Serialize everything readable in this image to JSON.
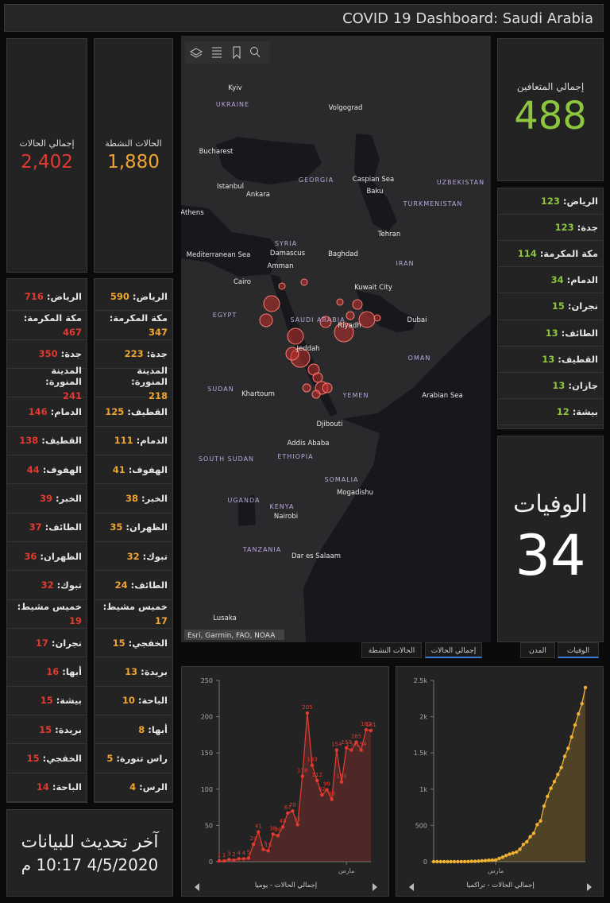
{
  "header": {
    "title": "COVID 19 Dashboard: Saudi Arabia"
  },
  "panels": {
    "total_cases": {
      "label": "إجمالي الحالات",
      "value": "2,402"
    },
    "active_cases": {
      "label": "الحالات النشطة",
      "value": "1,880"
    },
    "recovered": {
      "label": "إجمالي المتعافين",
      "value": "488"
    },
    "deaths": {
      "label": "الوفيات",
      "value": "34"
    }
  },
  "lists": {
    "total_cases": [
      {
        "name": "الرياض:",
        "value": 716
      },
      {
        "name": "مكة المكرمة:",
        "value": 467
      },
      {
        "name": "جدة:",
        "value": 350
      },
      {
        "name": "المدينة المنورة:",
        "value": 241
      },
      {
        "name": "الدمام:",
        "value": 146
      },
      {
        "name": "القطيف:",
        "value": 138
      },
      {
        "name": "الهفوف:",
        "value": 44
      },
      {
        "name": "الخبر:",
        "value": 39
      },
      {
        "name": "الطائف:",
        "value": 37
      },
      {
        "name": "الظهران:",
        "value": 36
      },
      {
        "name": "تبوك:",
        "value": 32
      },
      {
        "name": "خميس مشيط:",
        "value": 19
      },
      {
        "name": "نجران:",
        "value": 17
      },
      {
        "name": "أبها:",
        "value": 16
      },
      {
        "name": "بيشة:",
        "value": 15
      },
      {
        "name": "بريدة:",
        "value": 15
      },
      {
        "name": "الخفجي:",
        "value": 15
      },
      {
        "name": "الباحة:",
        "value": 14
      }
    ],
    "active_cases": [
      {
        "name": "الرياض:",
        "value": 590
      },
      {
        "name": "مكة المكرمة:",
        "value": 347
      },
      {
        "name": "جدة:",
        "value": 223
      },
      {
        "name": "المدينة المنورة:",
        "value": 218
      },
      {
        "name": "القطيف:",
        "value": 125
      },
      {
        "name": "الدمام:",
        "value": 111
      },
      {
        "name": "الهفوف:",
        "value": 41
      },
      {
        "name": "الخبر:",
        "value": 38
      },
      {
        "name": "الظهران:",
        "value": 35
      },
      {
        "name": "تبوك:",
        "value": 32
      },
      {
        "name": "الطائف:",
        "value": 24
      },
      {
        "name": "خميس مشيط:",
        "value": 17
      },
      {
        "name": "الخفجي:",
        "value": 15
      },
      {
        "name": "بريدة:",
        "value": 13
      },
      {
        "name": "الباحة:",
        "value": 10
      },
      {
        "name": "أبها:",
        "value": 8
      },
      {
        "name": "راس تنورة:",
        "value": 5
      },
      {
        "name": "الرس:",
        "value": 4
      }
    ],
    "recovered": [
      {
        "name": "الرياض:",
        "value": 123
      },
      {
        "name": "جدة:",
        "value": 123
      },
      {
        "name": "مكة المكرمة:",
        "value": 114
      },
      {
        "name": "الدمام:",
        "value": 34
      },
      {
        "name": "نجران:",
        "value": 15
      },
      {
        "name": "الطائف:",
        "value": 13
      },
      {
        "name": "القطيف:",
        "value": 13
      },
      {
        "name": "جازان:",
        "value": 13
      },
      {
        "name": "بيشة:",
        "value": 12
      }
    ]
  },
  "last_update": {
    "label": "آخر تحديث للبيانات",
    "value": "4/5/2020 10:17 م"
  },
  "map": {
    "labels": [
      "Kyiv",
      "UKRAINE",
      "Volgograd",
      "Bucharest",
      "Istanbul",
      "Ankara",
      "GEORGIA",
      "Caspian Sea",
      "Baku",
      "UZBEKISTAN",
      "TURKMENISTAN",
      "Athens",
      "Tehran",
      "Mediterranean Sea",
      "SYRIA",
      "Damascus",
      "Baghdad",
      "IRAN",
      "Amman",
      "Cairo",
      "Kuwait City",
      "EGYPT",
      "SAUDI ARABIA",
      "Riyadh",
      "Dubai",
      "Jeddah",
      "OMAN",
      "SUDAN",
      "Khartoum",
      "YEMEN",
      "Arabian Sea",
      "Djibouti",
      "Addis Ababa",
      "ETHIOPIA",
      "SOUTH SUDAN",
      "SOMALIA",
      "Mogadishu",
      "UGANDA",
      "KENYA",
      "Nairobi",
      "TANZANIA",
      "Dar es Salaam",
      "Lusaka"
    ],
    "attribution": "Esri, Garmin, FAO, NOAA"
  },
  "tabs": [
    "الحالات النشطة",
    "إجمالي الحالات",
    "المدن",
    "الوفيات"
  ],
  "chart_data": [
    {
      "type": "line",
      "title": "إجمالي الحالات - يوميا",
      "color": "#e23a30",
      "area": true,
      "data_labels": true,
      "grid": false,
      "categories": [
        null,
        null,
        null,
        null,
        null,
        null,
        null,
        null,
        null,
        null,
        null,
        null,
        null,
        null,
        null,
        null,
        null,
        null,
        null,
        null,
        null,
        null,
        null,
        null,
        null,
        null,
        "مارس",
        null,
        null,
        null,
        null,
        null
      ],
      "values": [
        1,
        1,
        3,
        2,
        4,
        4,
        5,
        24,
        41,
        17,
        15,
        38,
        36,
        48,
        67,
        70,
        51,
        118,
        205,
        133,
        112,
        92,
        99,
        86,
        154,
        110,
        157,
        154,
        165,
        154,
        182,
        181
      ],
      "ylim": [
        0,
        250
      ],
      "yticks": [
        0,
        50,
        100,
        150,
        200,
        250
      ]
    },
    {
      "type": "line",
      "title": "إجمالي الحالات - تراكميا",
      "color": "#f0b232",
      "area": true,
      "data_labels": false,
      "grid": false,
      "categories": [
        null,
        null,
        null,
        null,
        null,
        null,
        null,
        null,
        null,
        null,
        null,
        null,
        null,
        null,
        null,
        null,
        null,
        null,
        "مارس",
        null,
        null,
        null,
        null,
        null,
        null,
        null,
        null,
        null,
        null,
        null,
        null,
        null,
        null,
        null,
        null,
        null,
        null,
        null,
        null,
        null,
        null,
        null,
        null,
        null,
        null
      ],
      "values": [
        0,
        0,
        0,
        0,
        0,
        0,
        0,
        0,
        1,
        1,
        2,
        5,
        5,
        7,
        11,
        15,
        20,
        21,
        24,
        45,
        62,
        86,
        103,
        118,
        133,
        171,
        238,
        274,
        344,
        392,
        511,
        562,
        767,
        900,
        1012,
        1104,
        1203,
        1299,
        1453,
        1563,
        1720,
        1885,
        2039,
        2179,
        2402
      ],
      "ylim": [
        0,
        2500
      ],
      "yticks": [
        0,
        500,
        {
          "value": 1000,
          "label": "1k"
        },
        {
          "value": 1500,
          "label": "1.5k"
        },
        {
          "value": 2000,
          "label": "2k"
        },
        {
          "value": 2500,
          "label": "2.5k"
        }
      ]
    }
  ]
}
